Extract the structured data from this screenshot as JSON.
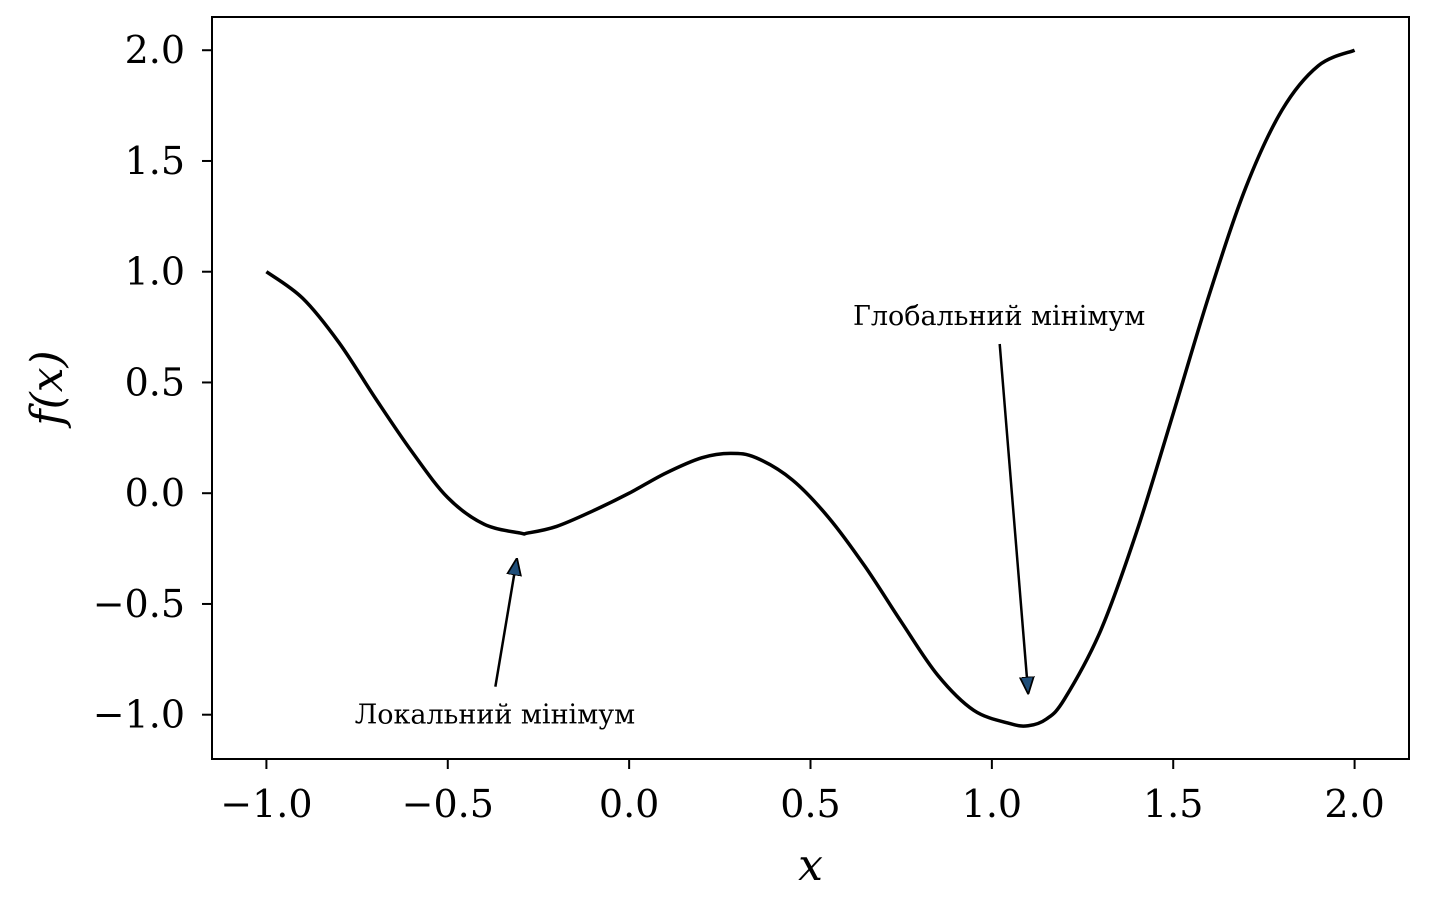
{
  "chart_data": {
    "type": "line",
    "title": "",
    "xlabel": "x",
    "ylabel": "f(x)",
    "xlim": [
      -1.15,
      2.15
    ],
    "ylim": [
      -1.2,
      2.15
    ],
    "grid": false,
    "xticks": [
      -1.0,
      -0.5,
      0.0,
      0.5,
      1.0,
      1.5,
      2.0
    ],
    "xtick_labels": [
      "−1.0",
      "−0.5",
      "0.0",
      "0.5",
      "1.0",
      "1.5",
      "2.0"
    ],
    "yticks": [
      -1.0,
      -0.5,
      0.0,
      0.5,
      1.0,
      1.5,
      2.0
    ],
    "ytick_labels": [
      "−1.0",
      "−0.5",
      "0.0",
      "0.5",
      "1.0",
      "1.5",
      "2.0"
    ],
    "series": [
      {
        "color": "#000000",
        "x": [
          -1.0,
          -0.9,
          -0.8,
          -0.7,
          -0.6,
          -0.5,
          -0.4,
          -0.3,
          -0.28,
          -0.2,
          -0.1,
          0.0,
          0.1,
          0.2,
          0.28,
          0.35,
          0.45,
          0.55,
          0.65,
          0.75,
          0.85,
          0.95,
          1.05,
          1.1,
          1.15,
          1.2,
          1.3,
          1.4,
          1.5,
          1.6,
          1.7,
          1.8,
          1.9,
          2.0
        ],
        "y": [
          1.0,
          0.88,
          0.68,
          0.43,
          0.19,
          -0.02,
          -0.14,
          -0.18,
          -0.18,
          -0.15,
          -0.08,
          0.0,
          0.09,
          0.16,
          0.18,
          0.16,
          0.06,
          -0.11,
          -0.33,
          -0.58,
          -0.82,
          -0.98,
          -1.04,
          -1.05,
          -1.02,
          -0.93,
          -0.62,
          -0.17,
          0.36,
          0.9,
          1.38,
          1.73,
          1.93,
          2.0
        ]
      }
    ],
    "annotations": [
      {
        "text": "Локальний мінімум",
        "text_at": [
          -0.37,
          -1.0
        ],
        "arrow_to": [
          -0.31,
          -0.3
        ]
      },
      {
        "text": "Глобальний мінімум",
        "text_at": [
          1.02,
          0.8
        ],
        "arrow_to": [
          1.1,
          -0.9
        ]
      }
    ]
  }
}
